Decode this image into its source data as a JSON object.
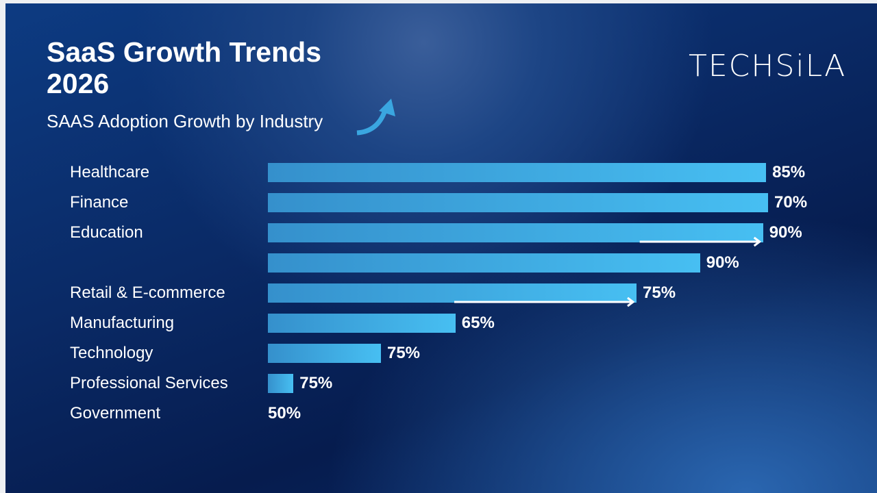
{
  "title_line1": "SaaS Growth Trends",
  "title_line2": "2026",
  "logo_text": "TECHSiLA",
  "chart_data": {
    "type": "bar",
    "orientation": "horizontal",
    "title": "SaaS Growth Trends 2026",
    "subtitle": "SAAS Adoption Growth by Industry",
    "categories": [
      "Healthcare",
      "Finance",
      "Education",
      "",
      "Retail & E-commerce",
      "Manufacturing",
      "Technology",
      "Professional Services",
      "Government"
    ],
    "data_labels": [
      "85%",
      "70%",
      "90%",
      "90%",
      "75%",
      "65%",
      "75%",
      "75%",
      "50%"
    ],
    "bar_lengths_relative": [
      99.6,
      100,
      99,
      86.4,
      73.7,
      37.5,
      22.6,
      5.1,
      0
    ],
    "arrows_on": [
      "Education",
      "Retail & E-commerce"
    ],
    "grid": false,
    "axes_visible": false,
    "bar_color": "#47bff2",
    "background_color": "#0a2a66"
  }
}
